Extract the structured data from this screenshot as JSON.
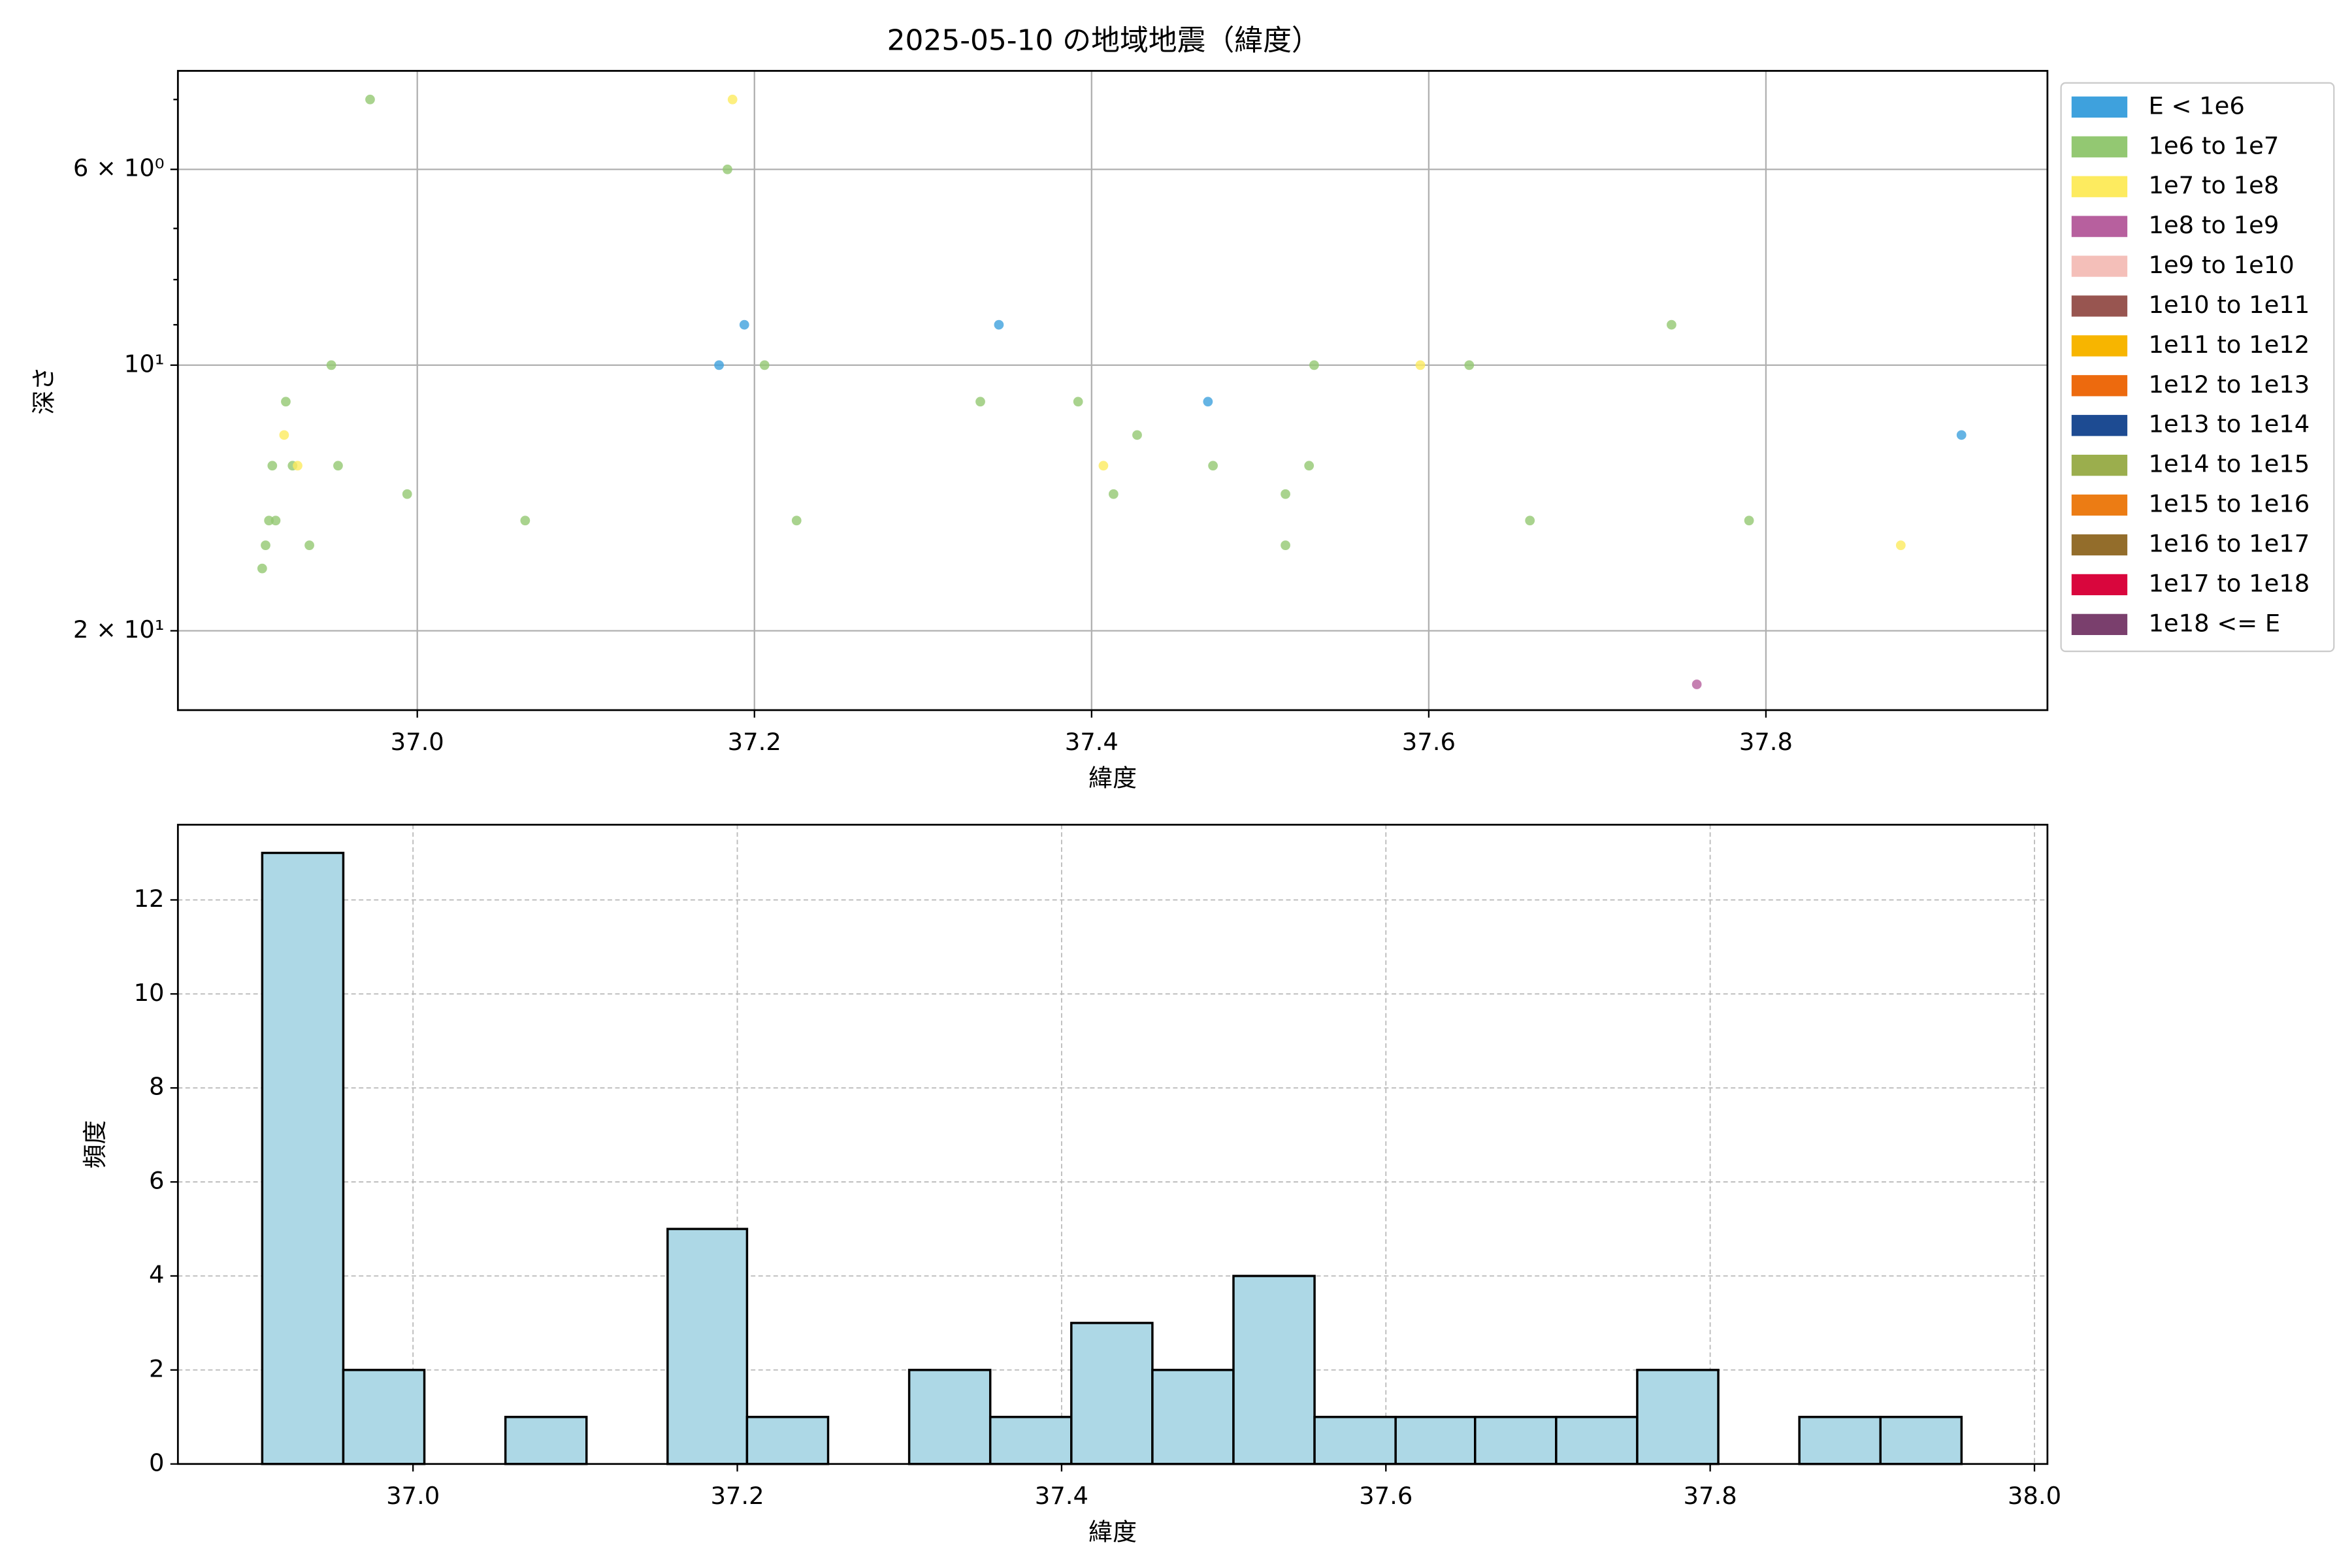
{
  "chart_data": [
    {
      "type": "scatter",
      "title": "2025-05-10 の地域地震（緯度）",
      "xlabel": "緯度",
      "ylabel": "深さ",
      "y_scale": "log",
      "y_inverted": true,
      "grid": true,
      "legend": "outside upper right",
      "xlim": [
        36.858,
        37.967
      ],
      "ylim": [
        24.6,
        4.64
      ],
      "xticks": [
        {
          "value": 37.0,
          "label": "37.0"
        },
        {
          "value": 37.2,
          "label": "37.2"
        },
        {
          "value": 37.4,
          "label": "37.4"
        },
        {
          "value": 37.6,
          "label": "37.6"
        },
        {
          "value": 37.8,
          "label": "37.8"
        }
      ],
      "yticks": [
        {
          "value": 6,
          "label": "6 × 10⁰"
        },
        {
          "value": 10,
          "label": "10¹"
        },
        {
          "value": 20,
          "label": "2 × 10¹"
        }
      ],
      "minor_yticks": [
        5,
        7,
        8,
        9
      ],
      "series": [
        {
          "name": "E < 1e6",
          "color": "#3ea1dd",
          "x": [
            37.179,
            37.194,
            37.345,
            37.469,
            37.916
          ],
          "values": [
            10,
            9,
            9,
            11,
            12
          ]
        },
        {
          "name": "1e6 to 1e7",
          "color": "#93c872",
          "x": [
            36.972,
            37.184,
            36.949,
            37.206,
            36.922,
            36.914,
            36.953,
            36.926,
            36.994,
            36.912,
            36.916,
            36.91,
            36.936,
            36.908,
            37.064,
            37.225,
            37.334,
            37.392,
            37.427,
            37.413,
            37.472,
            37.515,
            37.529,
            37.532,
            37.515,
            37.624,
            37.66,
            37.744,
            37.79
          ],
          "values": [
            5,
            6,
            10,
            10,
            11,
            13,
            13,
            13,
            14,
            15,
            15,
            16,
            16,
            17,
            15,
            15,
            11,
            11,
            12,
            14,
            13,
            14,
            13,
            10,
            16,
            10,
            15,
            9,
            15
          ]
        },
        {
          "name": "1e7 to 1e8",
          "color": "#fdeb5f",
          "x": [
            37.187,
            36.921,
            36.929,
            37.407,
            37.595,
            37.88
          ],
          "values": [
            5,
            12,
            13,
            13,
            10,
            16
          ]
        },
        {
          "name": "1e8 to 1e9",
          "color": "#b7609e",
          "x": [
            37.759
          ],
          "values": [
            23
          ]
        },
        {
          "name": "1e9 to 1e10",
          "color": "#f4bfb9",
          "x": [],
          "values": []
        },
        {
          "name": "1e10 to 1e11",
          "color": "#985550",
          "x": [],
          "values": []
        },
        {
          "name": "1e11 to 1e12",
          "color": "#f7b500",
          "x": [],
          "values": []
        },
        {
          "name": "1e12 to 1e13",
          "color": "#ed6a0e",
          "x": [],
          "values": []
        },
        {
          "name": "1e13 to 1e14",
          "color": "#1d4b92",
          "x": [],
          "values": []
        },
        {
          "name": "1e14 to 1e15",
          "color": "#9bae4d",
          "x": [],
          "values": []
        },
        {
          "name": "1e15 to 1e16",
          "color": "#ec7c14",
          "x": [],
          "values": []
        },
        {
          "name": "1e16 to 1e17",
          "color": "#936d2b",
          "x": [],
          "values": []
        },
        {
          "name": "1e17 to 1e18",
          "color": "#d9063d",
          "x": [],
          "values": []
        },
        {
          "name": "1e18 <= E",
          "color": "#7a3f6d",
          "x": [],
          "values": []
        }
      ]
    },
    {
      "type": "histogram",
      "xlabel": "緯度",
      "ylabel": "頻度",
      "color": "#add8e6",
      "edgecolor": "#000000",
      "grid": true,
      "xlim": [
        36.855,
        38.008
      ],
      "ylim": [
        0,
        13.6
      ],
      "xticks": [
        {
          "value": 37.0,
          "label": "37.0"
        },
        {
          "value": 37.2,
          "label": "37.2"
        },
        {
          "value": 37.4,
          "label": "37.4"
        },
        {
          "value": 37.6,
          "label": "37.6"
        },
        {
          "value": 37.8,
          "label": "37.8"
        },
        {
          "value": 38.0,
          "label": "38.0"
        }
      ],
      "yticks": [
        0,
        2,
        4,
        6,
        8,
        10,
        12
      ],
      "bins": [
        36.907,
        36.957,
        37.007,
        37.057,
        37.107,
        37.157,
        37.206,
        37.256,
        37.306,
        37.356,
        37.406,
        37.456,
        37.506,
        37.556,
        37.606,
        37.655,
        37.705,
        37.755,
        37.805,
        37.855,
        37.905,
        37.955
      ],
      "values": [
        13,
        2,
        0,
        1,
        0,
        5,
        1,
        0,
        2,
        1,
        3,
        2,
        4,
        1,
        1,
        1,
        1,
        2,
        0,
        1,
        1
      ]
    }
  ]
}
